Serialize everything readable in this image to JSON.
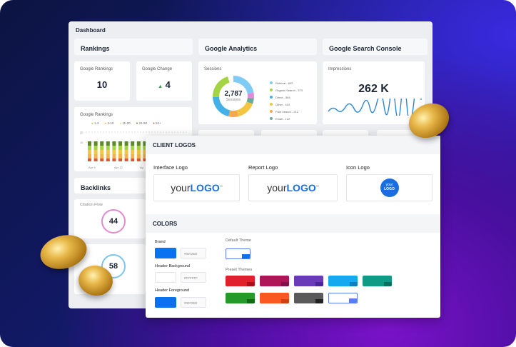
{
  "dashboard": {
    "title": "Dashboard",
    "sections": {
      "rankings": "Rankings",
      "analytics": "Google Analytics",
      "search_console": "Google Search Console",
      "backlinks": "Backlinks"
    },
    "google_rankings": {
      "label": "Google Rankings",
      "value": "10"
    },
    "google_change": {
      "label": "Google Change",
      "value": "4",
      "direction": "up"
    },
    "sessions": {
      "label": "Sessions",
      "total": "2,787",
      "total_label": "Sessions",
      "legend": [
        {
          "label": "Referral - 602",
          "color": "#7ecbf5",
          "value": 602
        },
        {
          "label": "Organic Search - 573",
          "color": "#a5d443",
          "value": 573
        },
        {
          "label": "Direct - 564",
          "color": "#44b0e8",
          "value": 564
        },
        {
          "label": "Other - 410",
          "color": "#f4c542",
          "value": 410
        },
        {
          "label": "Paid Search - 212",
          "color": "#f6a94a",
          "value": 212
        },
        {
          "label": "Email - 122",
          "color": "#6aa9a0",
          "value": 122
        }
      ],
      "extra_colors": [
        "#e58ad6",
        "#c8b98a"
      ]
    },
    "impressions": {
      "label": "Impressions",
      "value": "262 K"
    },
    "rankings_chart": {
      "title": "Google Rankings",
      "legend": [
        {
          "label": "1-3",
          "color": "#a5d443"
        },
        {
          "label": "4-10",
          "color": "#f6b24a"
        },
        {
          "label": "11-20",
          "color": "#d8e070"
        },
        {
          "label": "21-50",
          "color": "#5c8a2a"
        },
        {
          "label": "51+",
          "color": "#e0553f"
        }
      ],
      "y_ticks": [
        "20",
        "10"
      ],
      "x_ticks": [
        "Apr 5",
        "Apr 12",
        "Ap"
      ]
    },
    "citation_flow": {
      "label": "Citation Flow",
      "value": "44"
    },
    "trust_flow": {
      "value": "58"
    }
  },
  "client_logos": {
    "title": "CLIENT LOGOS",
    "interface_logo": "Interface Logo",
    "report_logo": "Report Logo",
    "icon_logo": "Icon Logo",
    "logo_text_a": "your",
    "logo_text_b": "LOGO",
    "logo_tm": "™"
  },
  "colors": {
    "title": "COLORS",
    "brand": {
      "label": "Brand",
      "color": "#0072EE",
      "hex": "#0072EE"
    },
    "header_background": {
      "label": "Header Background",
      "color": "#FFFFFF",
      "hex": "#FFFFFF"
    },
    "header_foreground": {
      "label": "Header Foreground",
      "color": "#0072EE",
      "hex": "#0072EE"
    },
    "default_theme": "Default Theme",
    "preset_themes": "Preset Themes",
    "presets": [
      [
        "#e0202a",
        "#a8101a"
      ],
      [
        "#b0155a",
        "#80104a"
      ],
      [
        "#6a3ab8",
        "#4a2598"
      ],
      [
        "#15aaf0",
        "#0e80c0"
      ],
      [
        "#0e9a85",
        "#0a7060"
      ],
      [
        "#25992a",
        "#116a15"
      ],
      [
        "#fb5722",
        "#d04010"
      ],
      [
        "#5a5a5a",
        "#222222"
      ],
      [
        "#ffffff",
        "#5b7cf5"
      ]
    ]
  }
}
